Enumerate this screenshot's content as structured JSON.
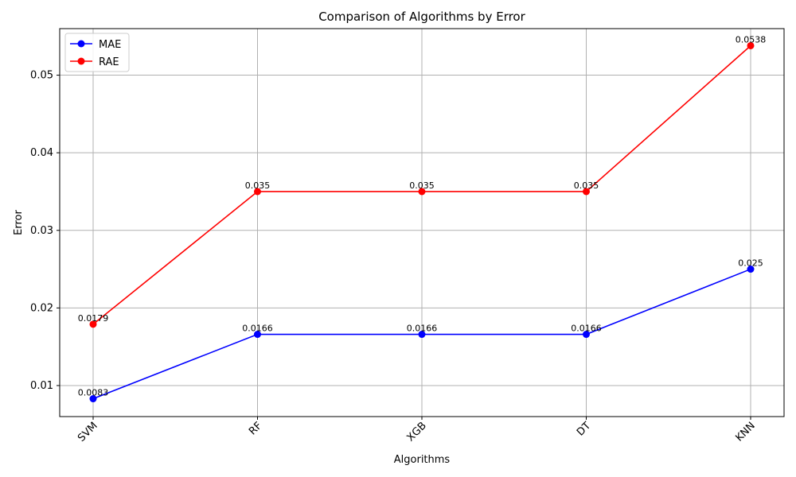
{
  "chart_data": {
    "type": "line",
    "title": "Comparison of Algorithms by Error",
    "xlabel": "Algorithms",
    "ylabel": "Error",
    "categories": [
      "SVM",
      "RF",
      "XGB",
      "DT",
      "KNN"
    ],
    "ylim": [
      0.006,
      0.056
    ],
    "yticks": [
      0.01,
      0.02,
      0.03,
      0.04,
      0.05
    ],
    "ytick_labels": [
      "0.01",
      "0.02",
      "0.03",
      "0.04",
      "0.05"
    ],
    "grid": true,
    "legend_position": "top-left",
    "series": [
      {
        "name": "MAE",
        "color": "#0000ff",
        "values": [
          0.0083,
          0.0166,
          0.0166,
          0.0166,
          0.025
        ],
        "labels": [
          "0.0083",
          "0.0166",
          "0.0166",
          "0.0166",
          "0.025"
        ]
      },
      {
        "name": "RAE",
        "color": "#ff0000",
        "values": [
          0.0179,
          0.035,
          0.035,
          0.035,
          0.0538
        ],
        "labels": [
          "0.0179",
          "0.035",
          "0.035",
          "0.035",
          "0.0538"
        ]
      }
    ]
  }
}
